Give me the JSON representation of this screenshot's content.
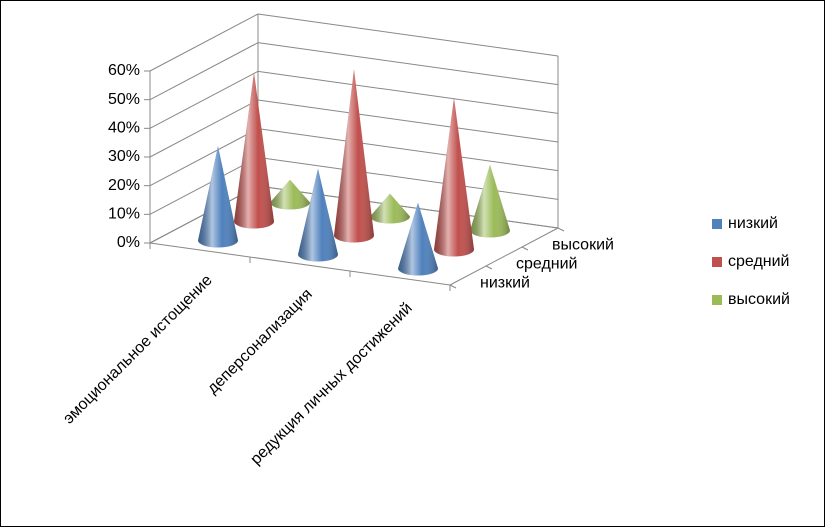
{
  "chart_data": {
    "type": "cone3d",
    "categories": [
      "эмоциональное истощение",
      "деперсонализация",
      "редукция личных достижений"
    ],
    "series": [
      {
        "name": "низкий",
        "color": "#4f81bd",
        "values": [
          33,
          30,
          23
        ]
      },
      {
        "name": "средний",
        "color": "#c0504d",
        "values": [
          52,
          58,
          53
        ]
      },
      {
        "name": "высокий",
        "color": "#9bbb59",
        "values": [
          8,
          8,
          23
        ]
      }
    ],
    "ylim": [
      0,
      60
    ],
    "yticks": [
      {
        "value": 0,
        "label": "0%"
      },
      {
        "value": 10,
        "label": "10%"
      },
      {
        "value": 20,
        "label": "20%"
      },
      {
        "value": 30,
        "label": "30%"
      },
      {
        "value": 40,
        "label": "40%"
      },
      {
        "value": 50,
        "label": "50%"
      },
      {
        "value": 60,
        "label": "60%"
      }
    ],
    "grid": true,
    "legend": "right"
  }
}
